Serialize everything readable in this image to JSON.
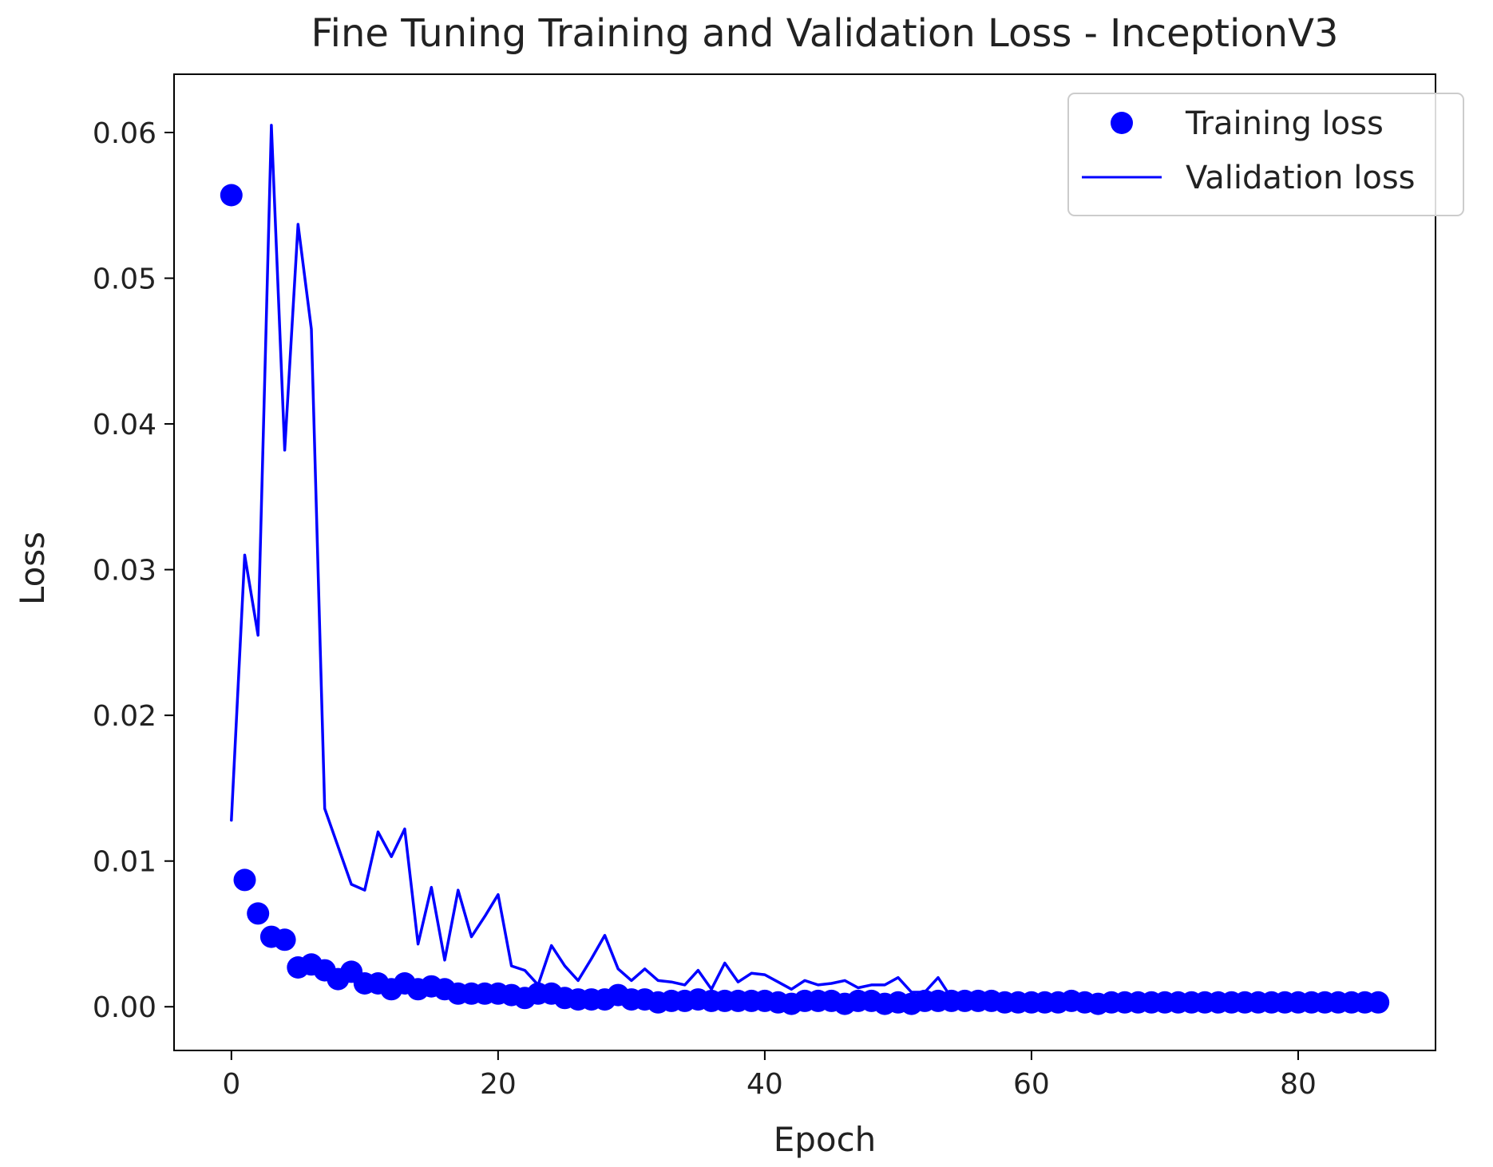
{
  "chart_data": {
    "type": "line",
    "title": "Fine Tuning Training and Validation Loss - InceptionV3",
    "xlabel": "Epoch",
    "ylabel": "Loss",
    "xlim": [
      -4.3,
      90.3
    ],
    "ylim": [
      -0.003,
      0.064
    ],
    "xticks": [
      0,
      20,
      40,
      60,
      80
    ],
    "xtick_labels": [
      "0",
      "20",
      "40",
      "60",
      "80"
    ],
    "yticks": [
      0.0,
      0.01,
      0.02,
      0.03,
      0.04,
      0.05,
      0.06
    ],
    "ytick_labels": [
      "0.00",
      "0.01",
      "0.02",
      "0.03",
      "0.04",
      "0.05",
      "0.06"
    ],
    "grid": false,
    "legend_position": "top-right",
    "color": "#0000ff",
    "series": [
      {
        "name": "Training loss",
        "style": "markers",
        "x": [
          0,
          1,
          2,
          3,
          4,
          5,
          6,
          7,
          8,
          9,
          10,
          11,
          12,
          13,
          14,
          15,
          16,
          17,
          18,
          19,
          20,
          21,
          22,
          23,
          24,
          25,
          26,
          27,
          28,
          29,
          30,
          31,
          32,
          33,
          34,
          35,
          36,
          37,
          38,
          39,
          40,
          41,
          42,
          43,
          44,
          45,
          46,
          47,
          48,
          49,
          50,
          51,
          52,
          53,
          54,
          55,
          56,
          57,
          58,
          59,
          60,
          61,
          62,
          63,
          64,
          65,
          66,
          67,
          68,
          69,
          70,
          71,
          72,
          73,
          74,
          75,
          76,
          77,
          78,
          79,
          80,
          81,
          82,
          83,
          84,
          85,
          86
        ],
        "values": [
          0.0557,
          0.0087,
          0.0064,
          0.0048,
          0.0046,
          0.0027,
          0.0029,
          0.0025,
          0.0019,
          0.0024,
          0.0016,
          0.0016,
          0.0012,
          0.0016,
          0.0012,
          0.0014,
          0.0012,
          0.0009,
          0.0009,
          0.0009,
          0.0009,
          0.0008,
          0.0006,
          0.0009,
          0.0009,
          0.0006,
          0.0005,
          0.0005,
          0.0005,
          0.0008,
          0.0005,
          0.0005,
          0.0003,
          0.0004,
          0.0004,
          0.0005,
          0.0004,
          0.0004,
          0.0004,
          0.0004,
          0.0004,
          0.0003,
          0.0002,
          0.0004,
          0.0004,
          0.0004,
          0.0002,
          0.0004,
          0.0004,
          0.0002,
          0.0003,
          0.0002,
          0.0004,
          0.0004,
          0.0004,
          0.0004,
          0.0004,
          0.0004,
          0.0003,
          0.0003,
          0.0003,
          0.0003,
          0.0003,
          0.0004,
          0.0003,
          0.0002,
          0.0003,
          0.0003,
          0.0003,
          0.0003,
          0.0003,
          0.0003,
          0.0003,
          0.0003,
          0.0003,
          0.0003,
          0.0003,
          0.0003,
          0.0003,
          0.0003,
          0.0003,
          0.0003,
          0.0003,
          0.0003,
          0.0003,
          0.0003,
          0.0003
        ]
      },
      {
        "name": "Validation loss",
        "style": "line",
        "x": [
          0,
          1,
          2,
          3,
          4,
          5,
          6,
          7,
          8,
          9,
          10,
          11,
          12,
          13,
          14,
          15,
          16,
          17,
          18,
          19,
          20,
          21,
          22,
          23,
          24,
          25,
          26,
          27,
          28,
          29,
          30,
          31,
          32,
          33,
          34,
          35,
          36,
          37,
          38,
          39,
          40,
          41,
          42,
          43,
          44,
          45,
          46,
          47,
          48,
          49,
          50,
          51,
          52,
          53,
          54,
          55,
          56,
          57,
          58,
          59,
          60,
          61,
          62,
          63,
          64,
          65,
          66,
          67,
          68,
          69,
          70,
          71,
          72,
          73,
          74,
          75,
          76,
          77,
          78,
          79,
          80,
          81,
          82,
          83,
          84,
          85,
          86
        ],
        "values": [
          0.0128,
          0.031,
          0.0255,
          0.0605,
          0.0382,
          0.0537,
          0.0465,
          0.0136,
          0.011,
          0.0084,
          0.008,
          0.012,
          0.0103,
          0.0122,
          0.0043,
          0.0082,
          0.0032,
          0.008,
          0.0048,
          0.0062,
          0.0077,
          0.0028,
          0.0025,
          0.0015,
          0.0042,
          0.0028,
          0.0018,
          0.0033,
          0.0049,
          0.0026,
          0.0018,
          0.0026,
          0.0018,
          0.0017,
          0.0015,
          0.0025,
          0.0012,
          0.003,
          0.0017,
          0.0023,
          0.0022,
          0.0017,
          0.0012,
          0.0018,
          0.0015,
          0.0016,
          0.0018,
          0.0013,
          0.0015,
          0.0015,
          0.002,
          0.001,
          0.001,
          0.002,
          0.0006,
          0.0005,
          0.0005,
          0.0005,
          0.0004,
          0.0004,
          0.0004,
          0.0004,
          0.0004,
          0.0004,
          0.0004,
          0.0004,
          0.0004,
          0.0004,
          0.0004,
          0.0004,
          0.0004,
          0.0004,
          0.0004,
          0.0004,
          0.0004,
          0.0004,
          0.0004,
          0.0004,
          0.0004,
          0.0004,
          0.0004,
          0.0004,
          0.0004,
          0.0004,
          0.0004,
          0.0004,
          0.0004
        ]
      }
    ]
  }
}
